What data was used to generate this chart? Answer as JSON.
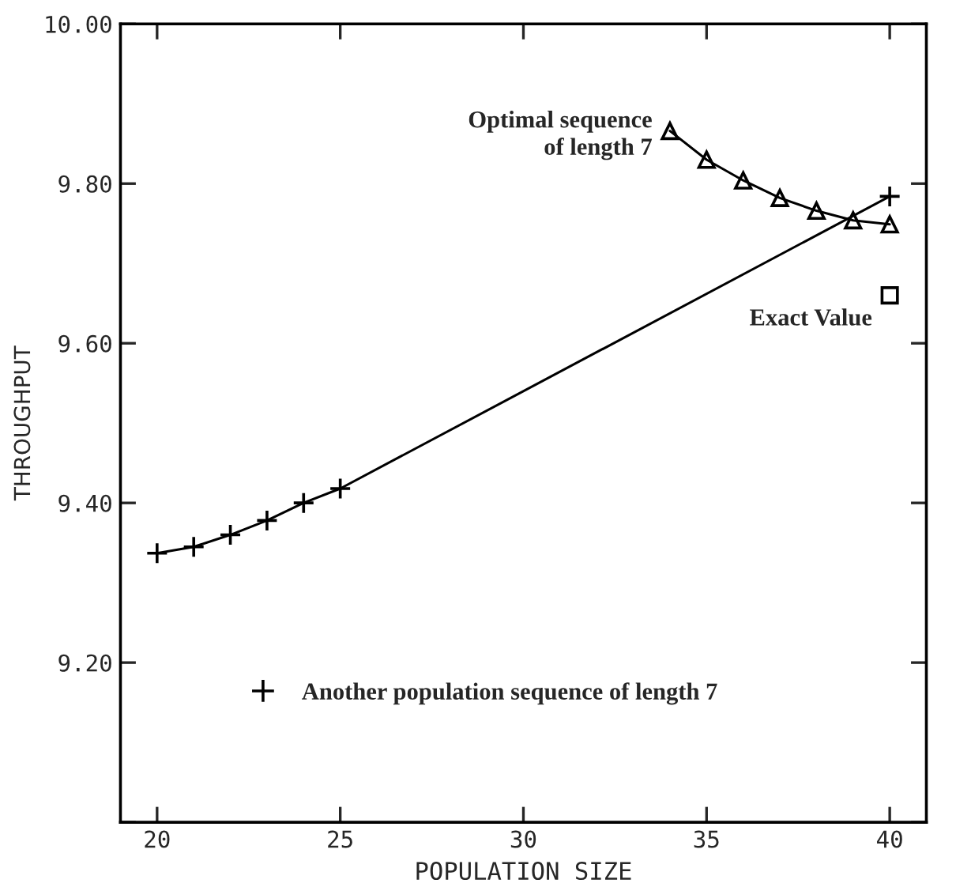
{
  "chart_data": {
    "type": "line",
    "xlabel": "POPULATION SIZE",
    "ylabel": "THROUGHPUT",
    "xlim": [
      19,
      41
    ],
    "xticks": [
      20,
      25,
      30,
      35,
      40
    ],
    "ylim": [
      9.0,
      10.0
    ],
    "yticks": [
      {
        "value": 9.0,
        "label": null
      },
      {
        "value": 9.2,
        "label": "9.20"
      },
      {
        "value": 9.4,
        "label": "9.40"
      },
      {
        "value": 9.6,
        "label": "9.60"
      },
      {
        "value": 9.8,
        "label": "9.80"
      },
      {
        "value": 10.0,
        "label": "10.00"
      }
    ],
    "grid": false,
    "legend": "bottom left",
    "series": [
      {
        "name": "Another population sequence of length 7",
        "color": "#000000",
        "marker": "cross",
        "line_style": "solid",
        "x": [
          20,
          21,
          22,
          23,
          24,
          25,
          40
        ],
        "values": [
          9.337,
          9.345,
          9.36,
          9.378,
          9.4,
          9.418,
          9.784
        ]
      },
      {
        "color": "#000000",
        "marker": "triangle",
        "line_style": "solid",
        "x": [
          34,
          35,
          36,
          37,
          38,
          39,
          40
        ],
        "values": [
          9.866,
          9.83,
          9.804,
          9.782,
          9.766,
          9.754,
          9.749
        ]
      },
      {
        "type": "scatter",
        "color": "#000000",
        "marker": "square",
        "x": [
          40
        ],
        "values": [
          9.66
        ]
      }
    ],
    "annotations": [
      {
        "text": "Optimal sequence\nof length 7",
        "x": 34,
        "y": 9.866
      },
      {
        "text": "Exact Value",
        "x": 40,
        "y": 9.66
      }
    ]
  }
}
